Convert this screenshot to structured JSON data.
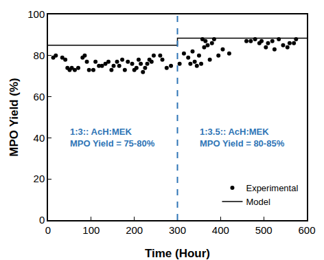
{
  "chart_data": {
    "type": "scatter",
    "x_label": "Time (Hour)",
    "y_label": "MPO Yield (%)",
    "xlim": [
      0,
      600
    ],
    "xticks": [
      0,
      100,
      200,
      300,
      400,
      500,
      600
    ],
    "ylim": [
      0,
      100
    ],
    "yticks": [
      0,
      20,
      40,
      60,
      80,
      100
    ],
    "grid": false,
    "legend": "lower right",
    "series": [
      {
        "name": "Experimental",
        "type": "scatter",
        "marker": "circle",
        "color": "#000000",
        "x": [
          12,
          18,
          33,
          40,
          45,
          50,
          55,
          62,
          70,
          80,
          85,
          90,
          95,
          105,
          110,
          118,
          125,
          133,
          140,
          147,
          152,
          160,
          165,
          172,
          178,
          185,
          195,
          200,
          205,
          210,
          215,
          220,
          225,
          230,
          235,
          240,
          245,
          260,
          265,
          275,
          285,
          305,
          315,
          325,
          330,
          335,
          340,
          345,
          350,
          355,
          358,
          362,
          365,
          370,
          375,
          380,
          385,
          395,
          405,
          420,
          460,
          470,
          480,
          490,
          495,
          505,
          510,
          520,
          525,
          535,
          545,
          555,
          560,
          570,
          575
        ],
        "values": [
          79,
          80,
          79,
          78,
          74,
          73,
          74,
          73,
          74,
          79,
          80,
          77,
          73,
          73,
          77,
          75,
          75,
          76,
          77,
          73,
          75,
          77,
          75,
          78,
          73,
          77,
          76,
          73,
          74,
          78,
          76,
          72,
          74,
          76,
          78,
          77,
          80,
          80,
          78,
          74,
          75,
          76,
          81,
          79,
          76,
          82,
          77,
          75,
          80,
          76,
          88,
          84,
          87,
          85,
          78,
          86,
          88,
          80,
          83,
          81,
          87,
          87,
          88,
          86,
          87,
          84,
          86,
          87,
          83,
          88,
          85,
          84,
          86,
          86,
          88
        ]
      },
      {
        "name": "Model",
        "type": "line",
        "line_style": "solid",
        "color": "#000000",
        "x": [
          0,
          300,
          300,
          600
        ],
        "values": [
          85,
          85,
          88.5,
          88.5
        ]
      }
    ],
    "reference_lines": [
      {
        "x": 300,
        "color": "#2e75b6",
        "line_style": "dash"
      }
    ],
    "annotations": [
      {
        "lines": [
          "1:3:: AcH:MEK",
          "MPO Yield = 75-80%"
        ],
        "color": "#2e75b6"
      },
      {
        "lines": [
          "1:3.5:: AcH:MEK",
          "MPO Yield = 80-85%"
        ],
        "color": "#2e75b6"
      }
    ]
  }
}
